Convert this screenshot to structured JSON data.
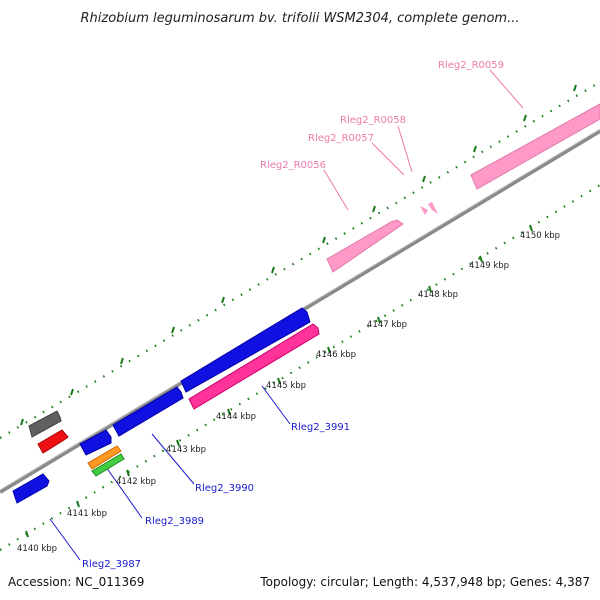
{
  "title": "Rhizobium leguminosarum bv. trifolii WSM2304, complete genom...",
  "footer": {
    "accession": "Accession: NC_011369",
    "summary": "Topology: circular; Length: 4,537,948 bp; Genes: 4,387"
  },
  "ticks": [
    "4140 kbp",
    "4141 kbp",
    "4142 kbp",
    "4143 kbp",
    "4144 kbp",
    "4145 kbp",
    "4146 kbp",
    "4147 kbp",
    "4148 kbp",
    "4149 kbp",
    "4150 kbp"
  ],
  "labels_top": [
    "Rleg2_R0059",
    "Rleg2_R0058",
    "Rleg2_R0057",
    "Rleg2_R0056"
  ],
  "labels_bottom": [
    "Rleg2_3991",
    "Rleg2_3990",
    "Rleg2_3989",
    "Rleg2_3987"
  ],
  "colors": {
    "backbone": "#8a8a8a",
    "cds": "#1010e0",
    "rrna": "#ff99c8",
    "ncrna": "#ff3399",
    "dots": "#1a7a1a",
    "label_cds": "#1a1acc",
    "label_rna": "#ee7aaa"
  }
}
